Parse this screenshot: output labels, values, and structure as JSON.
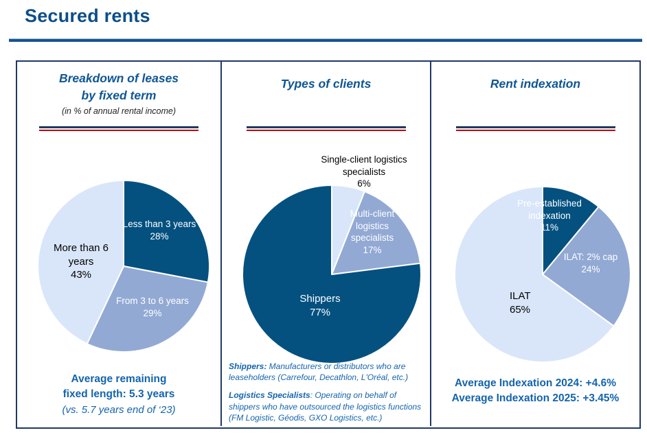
{
  "page_title": "Secured rents",
  "colors": {
    "dark_blue_slice": "#045180",
    "medium_blue_slice": "#92a9d4",
    "light_blue_slice": "#d9e6f9",
    "header_text": "#0e5695",
    "accent_text": "#1464ad",
    "panel_border": "#1f3864",
    "separator_navy": "#203864",
    "separator_red": "#c00000",
    "title_text": "#0c4e8a"
  },
  "panels": [
    {
      "header": [
        "Breakdown of leases",
        "by fixed term"
      ],
      "subheader": "(in % of annual rental income)",
      "footer_bold": [
        "Average remaining",
        "fixed length: 5.3 years"
      ],
      "footer_italic": "(vs. 5.7 years end of ‘23)"
    },
    {
      "header": [
        "Types of clients"
      ],
      "footnotes": [
        {
          "bold": "Shippers:",
          "text": " Manufacturers or distributors who are leaseholders (Carrefour, Decathlon, L'Oréal, etc.)"
        },
        {
          "bold": "Logistics Specialists",
          "text": ":  Operating on behalf of shippers who have outsourced the logistics functions (FM Logistic, Géodis, GXO Logistics, etc.)"
        }
      ]
    },
    {
      "header": [
        "Rent indexation"
      ],
      "footer_bold": [
        "Average Indexation 2024: +4.6%",
        "Average Indexation 2025: +3.45%"
      ]
    }
  ],
  "chart_data": [
    {
      "type": "pie",
      "title": "Breakdown of leases by fixed term",
      "unit": "% of annual rental income",
      "start": "12 o'clock",
      "direction": "clockwise",
      "slices": [
        {
          "label": "Less than 3 years",
          "value": 28,
          "pct": "28%",
          "color": "#045180",
          "label_color": "white"
        },
        {
          "label": "From 3 to 6 years",
          "value": 29,
          "pct": "29%",
          "color": "#92a9d4",
          "label_color": "white"
        },
        {
          "label": "More than 6 years",
          "value": 43,
          "pct": "43%",
          "color": "#d9e6f9",
          "label_color": "black"
        }
      ]
    },
    {
      "type": "pie",
      "title": "Types of clients",
      "start": "12 o'clock",
      "direction": "clockwise",
      "slices": [
        {
          "label": "Single-client logistics specialists",
          "value": 6,
          "pct": "6%",
          "color": "#d9e6f9",
          "label_color": "black"
        },
        {
          "label": "Multi-client logistics specialists",
          "value": 17,
          "pct": "17%",
          "color": "#92a9d4",
          "label_color": "white"
        },
        {
          "label": "Shippers",
          "value": 77,
          "pct": "77%",
          "color": "#045180",
          "label_color": "white"
        }
      ]
    },
    {
      "type": "pie",
      "title": "Rent indexation",
      "start": "12 o'clock",
      "direction": "clockwise",
      "slices": [
        {
          "label": "Pre-established indexation",
          "value": 11,
          "pct": "11%",
          "color": "#045180",
          "label_color": "white"
        },
        {
          "label": "ILAT: 2% cap",
          "value": 24,
          "pct": "24%",
          "color": "#92a9d4",
          "label_color": "white"
        },
        {
          "label": "ILAT",
          "value": 65,
          "pct": "65%",
          "color": "#d9e6f9",
          "label_color": "black"
        }
      ]
    }
  ]
}
